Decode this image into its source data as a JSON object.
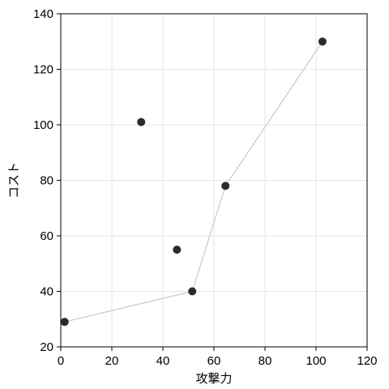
{
  "chart_data": {
    "type": "scatter",
    "title": "",
    "xlabel": "攻撃力",
    "ylabel": "コスト",
    "xlim": [
      0,
      120
    ],
    "ylim": [
      20,
      140
    ],
    "xticks": [
      0,
      20,
      40,
      60,
      80,
      100,
      120
    ],
    "yticks": [
      20,
      40,
      60,
      80,
      100,
      120,
      140
    ],
    "grid": true,
    "points": [
      {
        "x": 1.5,
        "y": 29
      },
      {
        "x": 31.5,
        "y": 101
      },
      {
        "x": 45.5,
        "y": 55
      },
      {
        "x": 51.5,
        "y": 40
      },
      {
        "x": 64.5,
        "y": 78
      },
      {
        "x": 102.5,
        "y": 130
      }
    ],
    "frontier_line": [
      {
        "x": 1.5,
        "y": 29
      },
      {
        "x": 51.5,
        "y": 40
      },
      {
        "x": 64.5,
        "y": 78
      },
      {
        "x": 102.5,
        "y": 130
      }
    ],
    "colors": {
      "point": "#2b2b2b",
      "line": "#c8c8c8",
      "grid": "#e6e6e6"
    }
  }
}
